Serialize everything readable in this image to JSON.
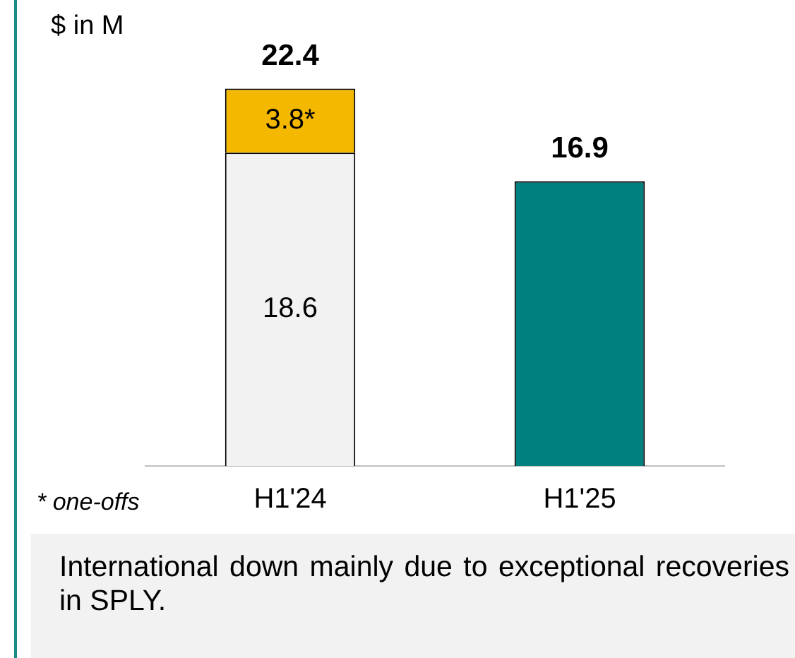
{
  "chart_data": {
    "type": "bar",
    "stacked": true,
    "ylabel": "$ in M",
    "categories": [
      "H1'24",
      "H1'25"
    ],
    "series": [
      {
        "values": [
          18.6,
          16.9
        ],
        "colors": [
          "#f2f2f2",
          "#00807f"
        ],
        "value_labels": [
          "18.6",
          null
        ]
      },
      {
        "values": [
          3.8,
          null
        ],
        "color": "#f5b800",
        "value_labels": [
          "3.8*",
          null
        ]
      }
    ],
    "totals": [
      "22.4",
      "16.9"
    ],
    "legend": false,
    "grid": false,
    "annotations": [
      "* one-offs",
      "International down mainly due to exceptional recoveries in SPLY."
    ]
  }
}
